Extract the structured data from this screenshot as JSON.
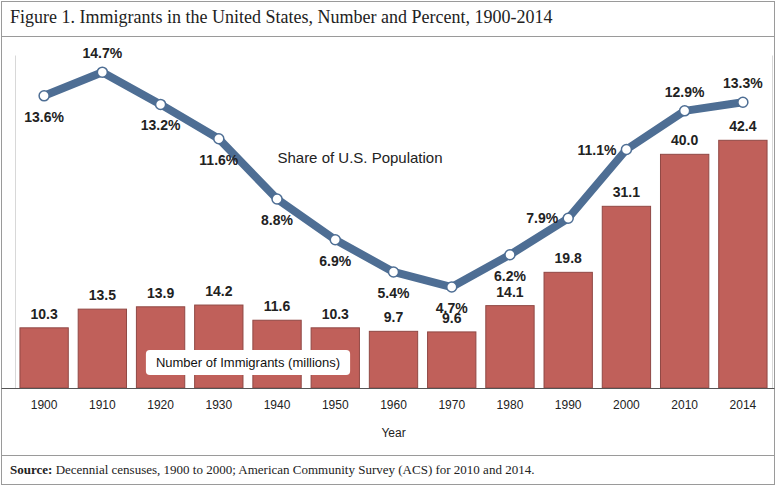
{
  "chart_data": {
    "type": "bar",
    "title": "Figure 1. Immigrants in the United States, Number and Percent, 1900-2014",
    "xlabel": "Year",
    "source": "Source: Decennial censuses, 1900 to 2000; American Community Survey (ACS) for 2010 and 2014.",
    "categories": [
      "1900",
      "1910",
      "1920",
      "1930",
      "1940",
      "1950",
      "1960",
      "1970",
      "1980",
      "1990",
      "2000",
      "2010",
      "2014"
    ],
    "series": [
      {
        "name": "Number of Immigrants (millions)",
        "type": "bar",
        "color": "#c0605a",
        "values": [
          10.3,
          13.5,
          13.9,
          14.2,
          11.6,
          10.3,
          9.7,
          9.6,
          14.1,
          19.8,
          31.1,
          40.0,
          42.4
        ],
        "value_labels": [
          "10.3",
          "13.5",
          "13.9",
          "14.2",
          "11.6",
          "10.3",
          "9.7",
          "9.6",
          "14.1",
          "19.8",
          "31.1",
          "40.0",
          "42.4"
        ]
      },
      {
        "name": "Share of U.S. Population",
        "type": "line",
        "axis": "y2",
        "color": "#4e6e94",
        "marker": "circle",
        "values": [
          13.6,
          14.7,
          13.2,
          11.6,
          8.8,
          6.9,
          5.4,
          4.7,
          6.2,
          7.9,
          11.1,
          12.9,
          13.3
        ],
        "value_labels": [
          "13.6%",
          "14.7%",
          "13.2%",
          "11.6%",
          "8.8%",
          "6.9%",
          "5.4%",
          "4.7%",
          "6.2%",
          "7.9%",
          "11.1%",
          "12.9%",
          "13.3%"
        ]
      }
    ],
    "ylim": [
      0,
      57
    ],
    "yticks": [],
    "y2lim": [
      0,
      15.5
    ],
    "y2ticks": [],
    "data_labels": true,
    "tick_labels": "x",
    "grid": false
  }
}
